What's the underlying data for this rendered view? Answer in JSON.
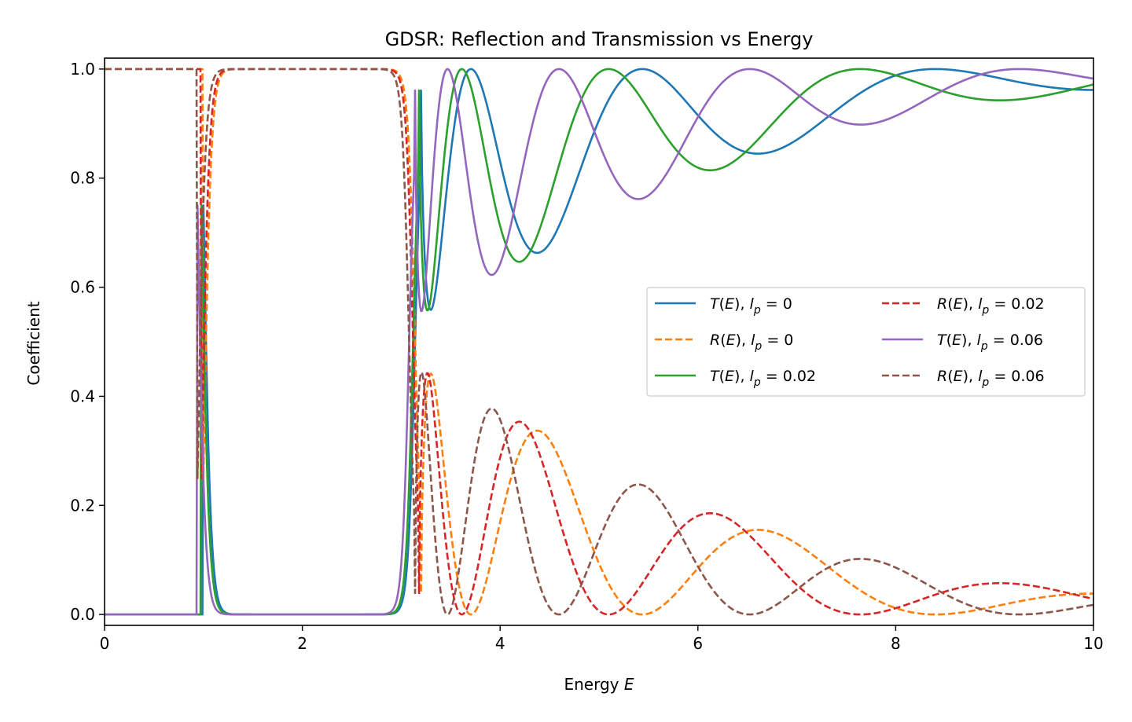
{
  "chart_data": {
    "type": "line",
    "title": "GDSR: Reflection and Transmission vs Energy",
    "xlabel": "Energy ",
    "xlabel_var": "E",
    "ylabel": "Coefficient",
    "xlim": [
      0,
      10
    ],
    "ylim": [
      -0.02,
      1.02
    ],
    "x_ticks": [
      0,
      2,
      4,
      6,
      8,
      10
    ],
    "x_tick_labels": [
      "0",
      "2",
      "4",
      "6",
      "8",
      "10"
    ],
    "y_ticks": [
      0.0,
      0.2,
      0.4,
      0.6,
      0.8,
      1.0
    ],
    "y_tick_labels": [
      "0.0",
      "0.2",
      "0.4",
      "0.6",
      "0.8",
      "1.0"
    ],
    "grid": false,
    "legend_placement": "center-right",
    "legend_columns": 2,
    "model": {
      "energy_step": 0.01,
      "barrier_low_edge_base": 1.0,
      "barrier_high_edge_base": 3.2,
      "oscillation_factor_base": 4.0
    },
    "series": [
      {
        "name": "T(E), l_p = 0",
        "label_fn": "T",
        "label_val": "0",
        "kind": "T",
        "lp": 0,
        "color": "#1f77b4",
        "dashed": false
      },
      {
        "name": "R(E), l_p = 0",
        "label_fn": "R",
        "label_val": "0",
        "kind": "R",
        "lp": 0,
        "color": "#ff7f0e",
        "dashed": true
      },
      {
        "name": "T(E), l_p = 0.02",
        "label_fn": "T",
        "label_val": "0.02",
        "kind": "T",
        "lp": 0.02,
        "color": "#2ca02c",
        "dashed": false
      },
      {
        "name": "R(E), l_p = 0.02",
        "label_fn": "R",
        "label_val": "0.02",
        "kind": "R",
        "lp": 0.02,
        "color": "#d62728",
        "dashed": true
      },
      {
        "name": "T(E), l_p = 0.06",
        "label_fn": "T",
        "label_val": "0.06",
        "kind": "T",
        "lp": 0.06,
        "color": "#9467bd",
        "dashed": false
      },
      {
        "name": "R(E), l_p = 0.06",
        "label_fn": "R",
        "label_val": "0.06",
        "kind": "R",
        "lp": 0.06,
        "color": "#8c564b",
        "dashed": true
      }
    ]
  }
}
